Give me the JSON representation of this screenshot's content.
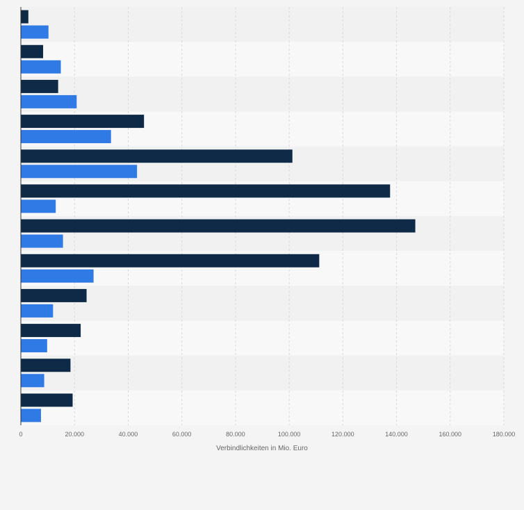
{
  "chart_data": {
    "type": "bar",
    "orientation": "horizontal",
    "categories": [
      "",
      "",
      "",
      "",
      "",
      "",
      "",
      "",
      "",
      "",
      "",
      ""
    ],
    "series": [
      {
        "color": "#0f2a47",
        "values": [
          2800,
          8300,
          13900,
          45900,
          101200,
          137600,
          147000,
          111200,
          24500,
          22300,
          18500,
          19300
        ]
      },
      {
        "color": "#2f7ae5",
        "values": [
          10300,
          14900,
          20800,
          33600,
          43300,
          13000,
          15700,
          27100,
          12000,
          9800,
          8700,
          7500
        ]
      }
    ],
    "xlabel": "Verbindlichkeiten in Mio. Euro",
    "xlim": [
      0,
      180000
    ],
    "x_ticks": [
      0,
      20000,
      40000,
      60000,
      80000,
      100000,
      120000,
      140000,
      160000,
      180000
    ],
    "x_tick_labels": [
      "0",
      "20.000",
      "40.000",
      "60.000",
      "80.000",
      "100.000",
      "120.000",
      "140.000",
      "160.000",
      "180.000"
    ],
    "grid": true,
    "band_colors": [
      "#f1f1f1",
      "#f8f8f8"
    ]
  }
}
